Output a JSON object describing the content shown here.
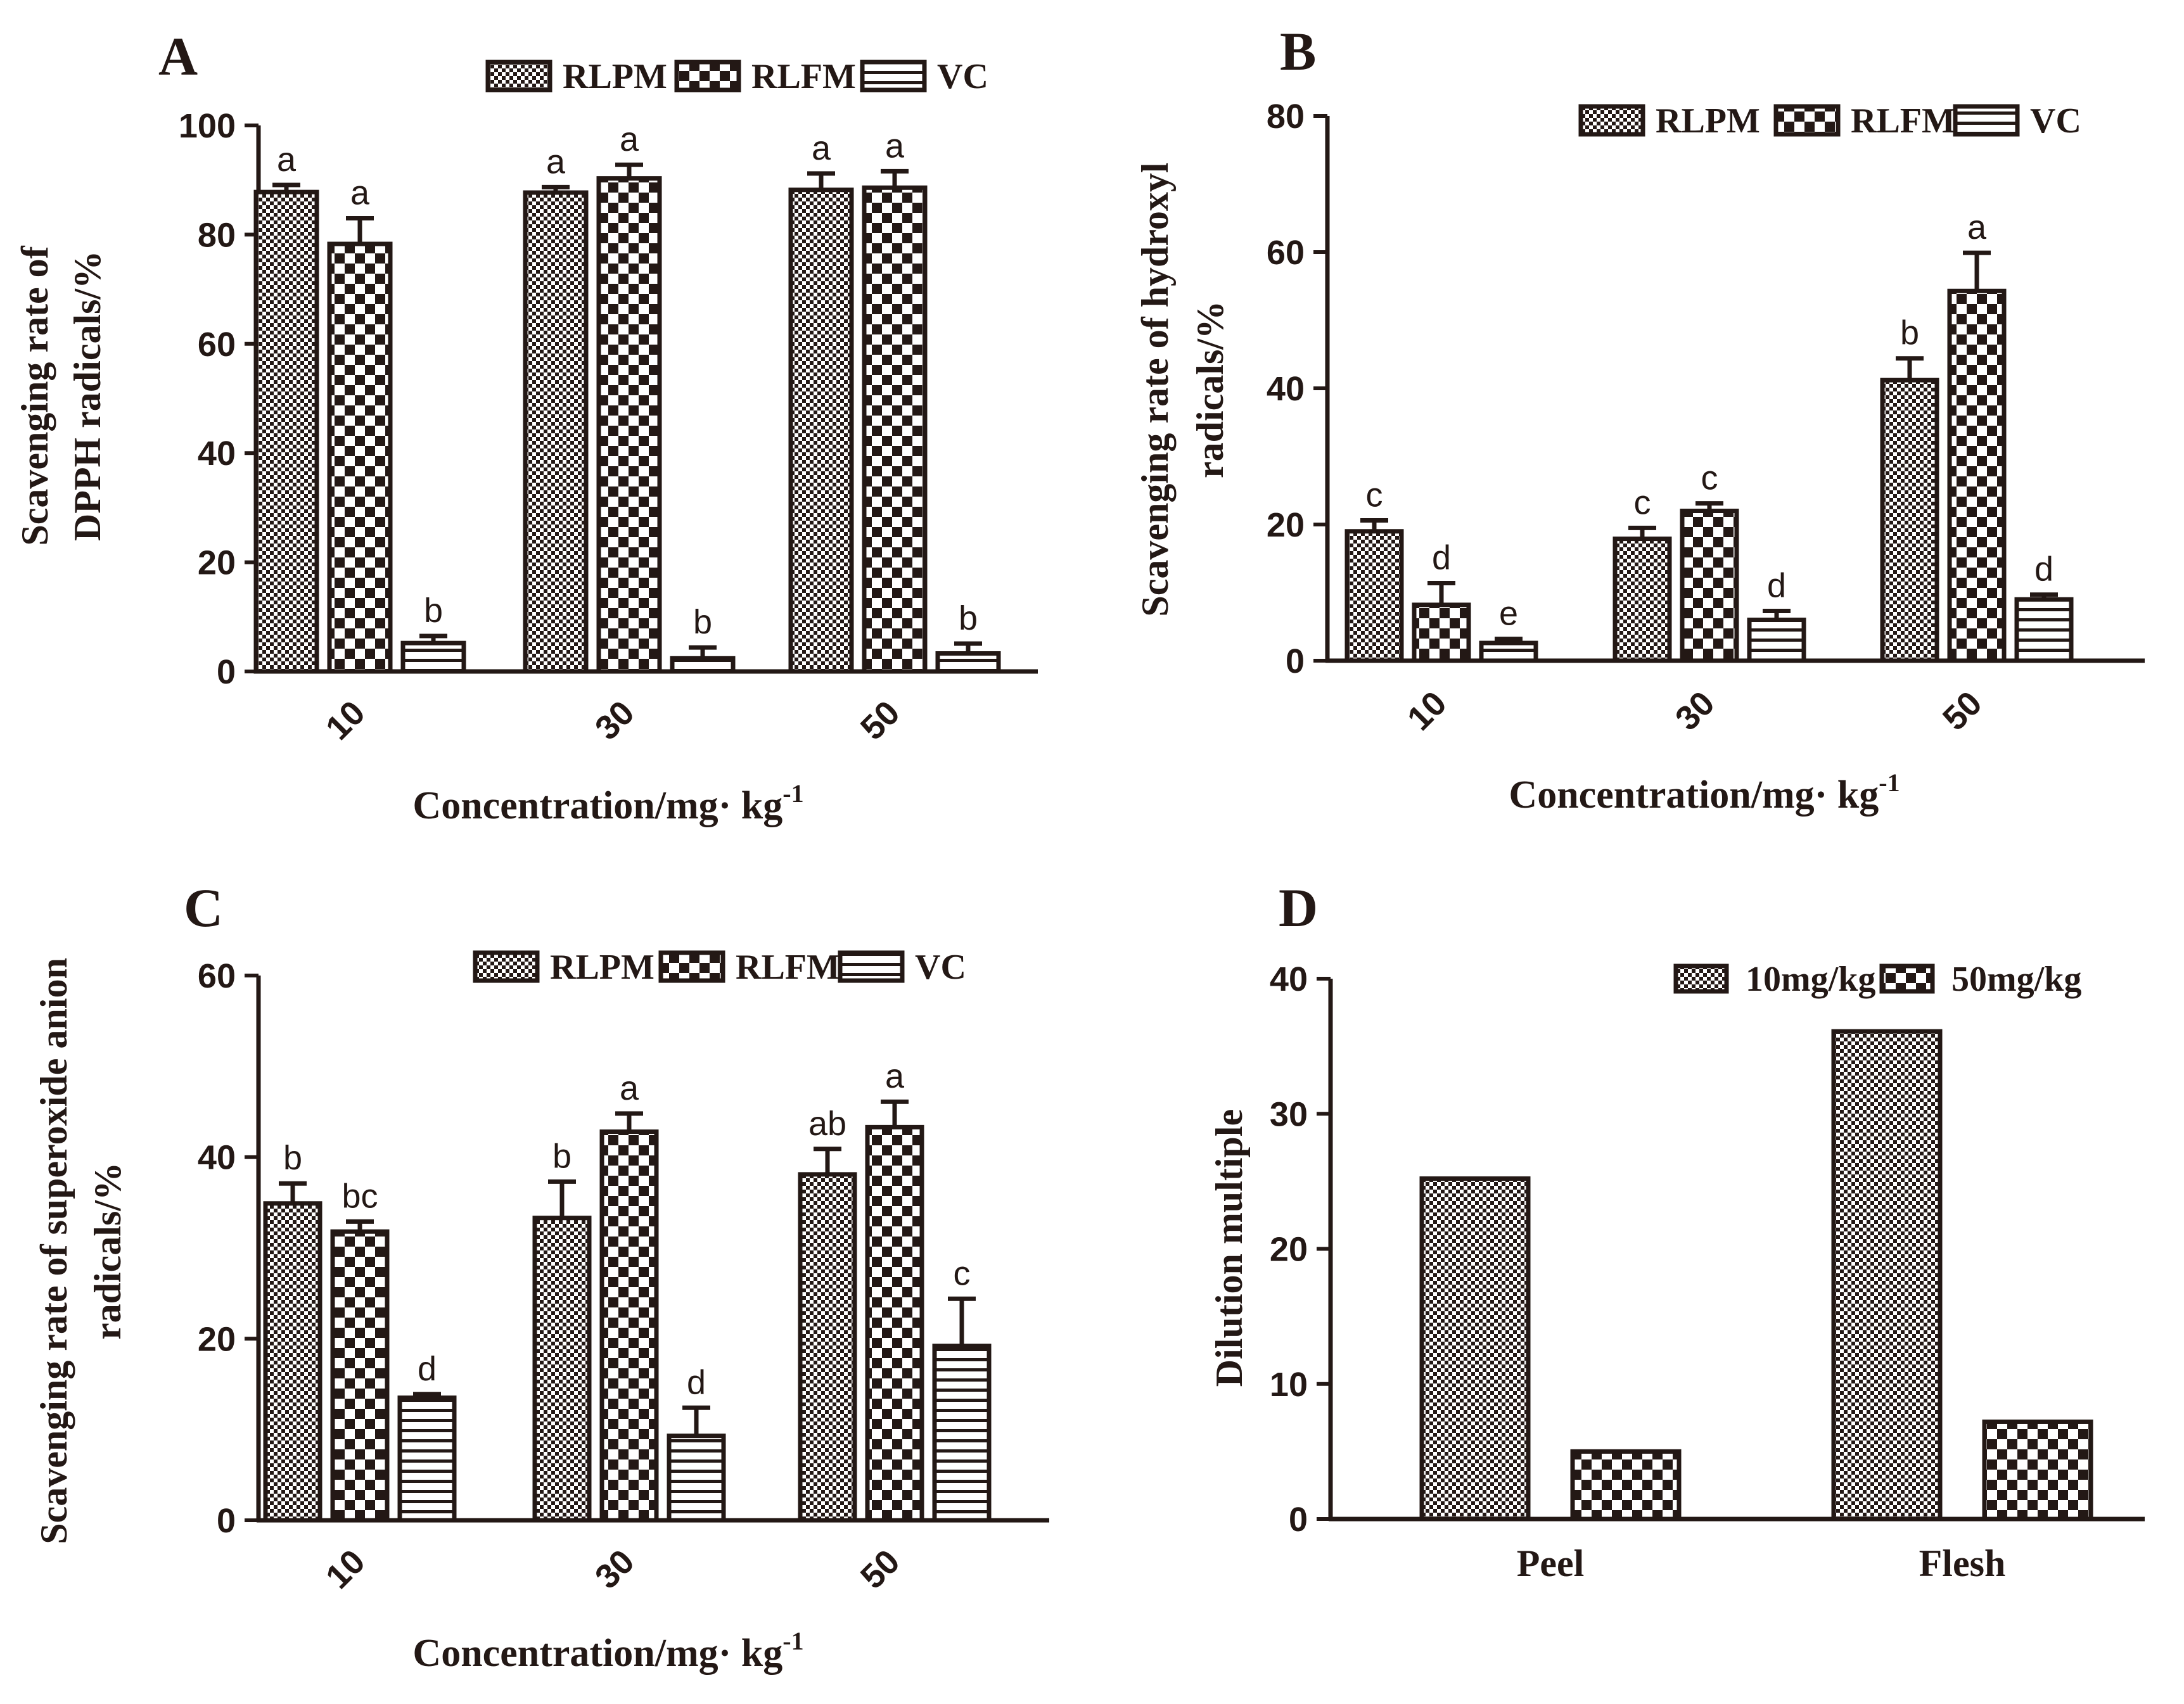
{
  "chart_data": [
    {
      "panel": "A",
      "type": "bar",
      "categories": [
        "10",
        "30",
        "50"
      ],
      "xlabel": "Concentration/mg· kg",
      "xlabel_sup": "-1",
      "ylabel": [
        "Scavenging rate of",
        "DPPH radicals/%"
      ],
      "ylim": [
        0,
        100
      ],
      "yticks": [
        0,
        20,
        40,
        60,
        80,
        100
      ],
      "legend_position": "top-right",
      "series": [
        {
          "name": "RLPM",
          "pattern": "fine",
          "values": [
            87.8,
            87.7,
            88.2
          ],
          "errors": [
            1.3,
            1.0,
            3.0
          ],
          "letters": [
            "a",
            "a",
            "a"
          ]
        },
        {
          "name": "RLFM",
          "pattern": "checker",
          "values": [
            78.3,
            90.3,
            88.6
          ],
          "errors": [
            4.7,
            2.5,
            3.0
          ],
          "letters": [
            "a",
            "a",
            "a"
          ]
        },
        {
          "name": "VC",
          "pattern": "stripe",
          "values": [
            5.2,
            2.4,
            3.3
          ],
          "errors": [
            1.3,
            2.0,
            1.8
          ],
          "letters": [
            "b",
            "b",
            "b"
          ]
        }
      ]
    },
    {
      "panel": "B",
      "type": "bar",
      "categories": [
        "10",
        "30",
        "50"
      ],
      "xlabel": "Concentration/mg· kg",
      "xlabel_sup": "-1",
      "ylabel": [
        "Scavenging rate of hydroxyl",
        "radicals/%"
      ],
      "ylim": [
        0,
        80
      ],
      "yticks": [
        0,
        20,
        40,
        60,
        80
      ],
      "legend_position": "top-right",
      "series": [
        {
          "name": "RLPM",
          "pattern": "fine",
          "values": [
            19.0,
            17.9,
            41.2
          ],
          "errors": [
            1.6,
            1.6,
            3.2
          ],
          "letters": [
            "c",
            "c",
            "b"
          ]
        },
        {
          "name": "RLFM",
          "pattern": "checker",
          "values": [
            8.2,
            22.0,
            54.3
          ],
          "errors": [
            3.2,
            1.1,
            5.6
          ],
          "letters": [
            "d",
            "c",
            "a"
          ]
        },
        {
          "name": "VC",
          "pattern": "stripe",
          "values": [
            2.6,
            6.0,
            9.0
          ],
          "errors": [
            0.6,
            1.3,
            0.7
          ],
          "letters": [
            "e",
            "d",
            "d"
          ]
        }
      ]
    },
    {
      "panel": "C",
      "type": "bar",
      "categories": [
        "10",
        "30",
        "50"
      ],
      "xlabel": "Concentration/mg· kg",
      "xlabel_sup": "-1",
      "ylabel": [
        "Scavenging rate of superoxide anion",
        "radicals/%"
      ],
      "ylim": [
        0,
        60
      ],
      "yticks": [
        0,
        20,
        40,
        60
      ],
      "legend_position": "top-right",
      "series": [
        {
          "name": "RLPM",
          "pattern": "fine",
          "values": [
            34.9,
            33.3,
            38.1
          ],
          "errors": [
            2.2,
            4.0,
            2.8
          ],
          "letters": [
            "b",
            "b",
            "ab"
          ]
        },
        {
          "name": "RLFM",
          "pattern": "checker",
          "values": [
            31.8,
            42.8,
            43.3
          ],
          "errors": [
            1.1,
            2.0,
            2.8
          ],
          "letters": [
            "bc",
            "a",
            "a"
          ]
        },
        {
          "name": "VC",
          "pattern": "stripe",
          "values": [
            13.5,
            9.3,
            19.2
          ],
          "errors": [
            0.4,
            3.1,
            5.2
          ],
          "letters": [
            "d",
            "d",
            "c"
          ]
        }
      ]
    },
    {
      "panel": "D",
      "type": "bar",
      "categories": [
        "Peel",
        "Flesh"
      ],
      "xlabel": "",
      "xlabel_sup": "",
      "ylabel": [
        "Dilution multiple"
      ],
      "ylim": [
        0,
        40
      ],
      "yticks": [
        0,
        10,
        20,
        30,
        40
      ],
      "legend_position": "top-right",
      "series": [
        {
          "name": "10mg/kg",
          "pattern": "fine",
          "values": [
            25.2,
            36.1
          ],
          "errors": null,
          "letters": null
        },
        {
          "name": "50mg/kg",
          "pattern": "checker",
          "values": [
            5.0,
            7.2
          ],
          "errors": null,
          "letters": null
        }
      ]
    }
  ],
  "colors": {
    "ink": "#231815",
    "paper": "#ffffff"
  }
}
